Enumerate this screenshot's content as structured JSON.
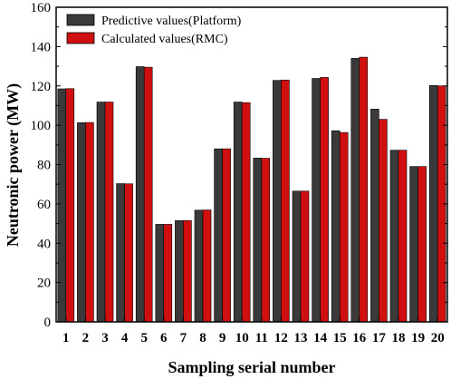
{
  "chart_data": {
    "type": "bar",
    "title": "",
    "xlabel": "Sampling serial number",
    "ylabel": "Neutronic power (MW)",
    "categories": [
      "1",
      "2",
      "3",
      "4",
      "5",
      "6",
      "7",
      "8",
      "9",
      "10",
      "11",
      "12",
      "13",
      "14",
      "15",
      "16",
      "17",
      "18",
      "19",
      "20"
    ],
    "ylim": [
      0,
      160
    ],
    "yticks": [
      0,
      20,
      40,
      60,
      80,
      100,
      120,
      140,
      160
    ],
    "grid": false,
    "legend_position": "top-left",
    "series": [
      {
        "name": "Predictive values(Platform)",
        "color": "#3a3a3a",
        "values": [
          118.5,
          101.3,
          111.8,
          70.3,
          129.8,
          49.6,
          51.5,
          56.8,
          88.0,
          111.8,
          83.3,
          122.8,
          66.5,
          123.8,
          97.2,
          134.0,
          108.2,
          87.3,
          79.0,
          120.2
        ]
      },
      {
        "name": "Calculated values(RMC)",
        "color": "#d01010",
        "values": [
          118.6,
          101.4,
          111.8,
          70.2,
          129.5,
          49.6,
          51.5,
          56.9,
          88.0,
          111.5,
          83.2,
          123.0,
          66.5,
          124.3,
          96.3,
          134.6,
          103.0,
          87.3,
          79.0,
          120.0
        ]
      }
    ]
  }
}
